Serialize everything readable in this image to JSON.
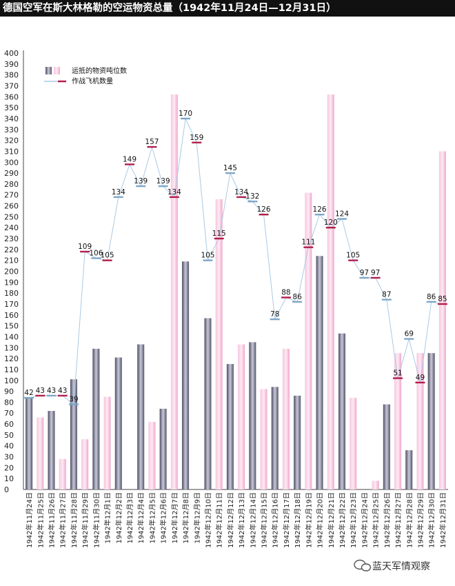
{
  "chart_data": {
    "type": "bar",
    "title": "德国空军在斯大林格勒的空运物资总量（1942年11月24日—12月31日）",
    "categories": [
      "1942年11月24日",
      "1942年11月25日",
      "1942年11月26日",
      "1942年11月27日",
      "1942年11月28日",
      "1942年11月29日",
      "1942年11月30日",
      "1942年12月1日",
      "1942年12月2日",
      "1942年12月3日",
      "1942年12月4日",
      "1942年12月5日",
      "1942年12月6日",
      "1942年12月7日",
      "1942年12月8日",
      "1942年12月9日",
      "1942年12月10日",
      "1942年12月11日",
      "1942年12月12日",
      "1942年12月13日",
      "1942年12月14日",
      "1942年12月15日",
      "1942年12月16日",
      "1942年12月17日",
      "1942年12月18日",
      "1942年12月19日",
      "1942年12月20日",
      "1942年12月21日",
      "1942年12月22日",
      "1942年12月23日",
      "1942年12月24日",
      "1942年12月25日",
      "1942年12月26日",
      "1942年12月27日",
      "1942年12月28日",
      "1942年12月29日",
      "1942年12月30日",
      "1942年12月31日"
    ],
    "series": [
      {
        "name": "运抵的物资吨位数",
        "type": "bar",
        "values": [
          84,
          66,
          72,
          28,
          101,
          46,
          129,
          85,
          121,
          0,
          133,
          62,
          74,
          362,
          209,
          0,
          157,
          266,
          115,
          133,
          135,
          92,
          94,
          129,
          86,
          272,
          214,
          362,
          143,
          84,
          0,
          8,
          78,
          125,
          36,
          125,
          125,
          310
        ]
      },
      {
        "name": "作战飞机数量",
        "type": "line",
        "values": [
          42,
          43,
          43,
          43,
          39,
          109,
          106,
          105,
          134,
          149,
          139,
          157,
          139,
          134,
          170,
          159,
          105,
          115,
          145,
          134,
          132,
          126,
          78,
          88,
          86,
          111,
          126,
          120,
          124,
          105,
          97,
          97,
          87,
          51,
          69,
          49,
          86,
          85
        ]
      }
    ],
    "ylim": [
      0,
      400
    ],
    "yticks": [
      0,
      10,
      20,
      30,
      40,
      50,
      60,
      70,
      80,
      90,
      100,
      110,
      120,
      130,
      140,
      150,
      160,
      170,
      180,
      190,
      200,
      210,
      220,
      230,
      240,
      250,
      260,
      270,
      280,
      290,
      300,
      310,
      320,
      330,
      340,
      350,
      360,
      370,
      380,
      390,
      400
    ],
    "legend_position": "top-left",
    "grid": false,
    "colors": {
      "bar_gray": "#6e6e86",
      "bar_pink": "#f4b8d8",
      "line": "#a9c9e4",
      "marker": "#b11e4a"
    }
  },
  "watermark": "蓝天军情观察"
}
